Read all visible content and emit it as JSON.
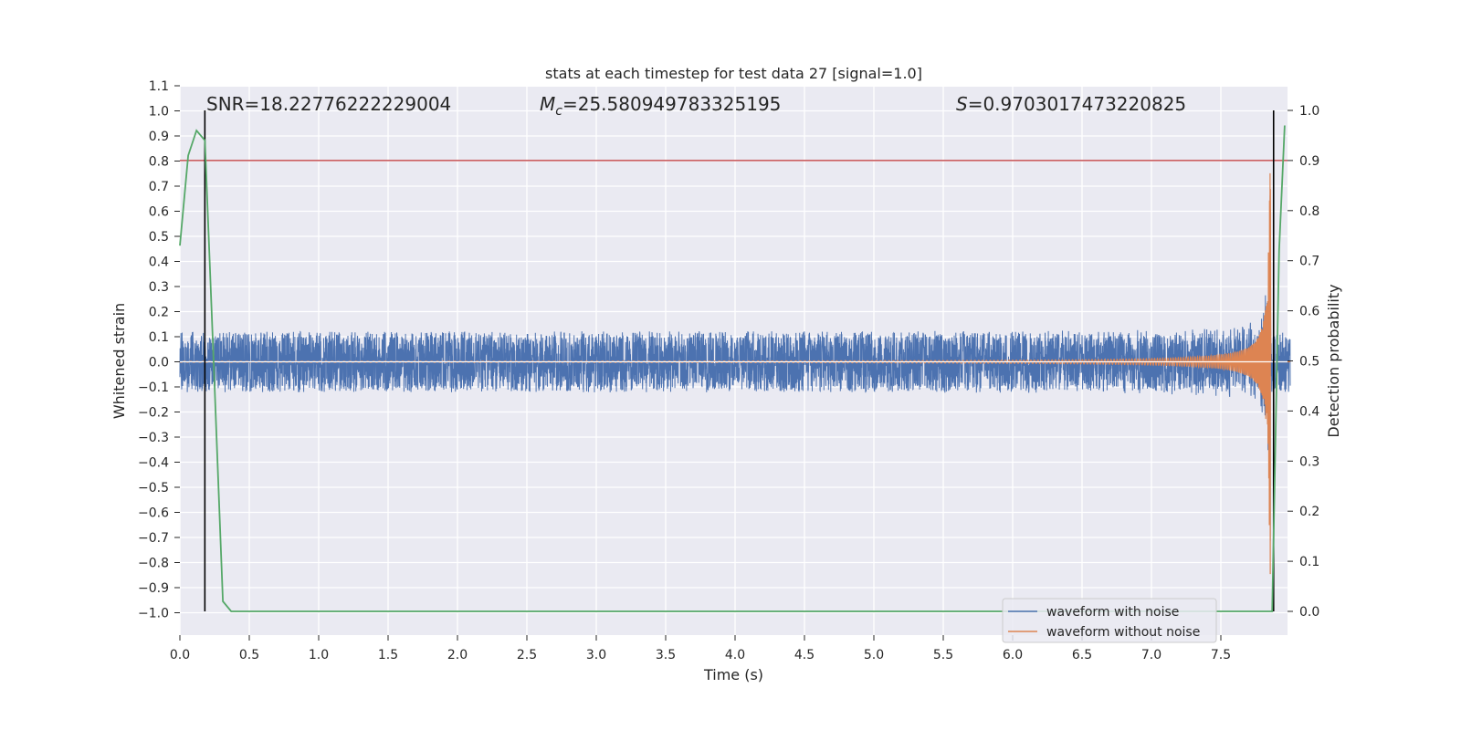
{
  "chart_data": {
    "type": "line",
    "title": "stats at each timestep for test data 27 [signal=1.0]",
    "xlabel": "Time (s)",
    "ylabel": "Whitened strain",
    "y2label": "Detection probability",
    "xlim": [
      0.0,
      8.0
    ],
    "ylim": [
      -1.1,
      1.1
    ],
    "y2lim": [
      -0.045,
      1.045
    ],
    "xticks": [
      "0.0",
      "0.5",
      "1.0",
      "1.5",
      "2.0",
      "2.5",
      "3.0",
      "3.5",
      "4.0",
      "4.5",
      "5.0",
      "5.5",
      "6.0",
      "6.5",
      "7.0",
      "7.5"
    ],
    "yticks": [
      "1.1",
      "1.0",
      "0.9",
      "0.8",
      "0.7",
      "0.6",
      "0.5",
      "0.4",
      "0.3",
      "0.2",
      "0.1",
      "0.0",
      "−0.1",
      "−0.2",
      "−0.3",
      "−0.4",
      "−0.5",
      "−0.6",
      "−0.7",
      "−0.8",
      "−0.9",
      "−1.0"
    ],
    "y2ticks": [
      "1.0",
      "0.9",
      "0.8",
      "0.7",
      "0.6",
      "0.5",
      "0.4",
      "0.3",
      "0.2",
      "0.1",
      "0.0"
    ],
    "grid": true,
    "legend_position": "lower-right",
    "annotations": {
      "snr": "SNR=18.22776222229004",
      "mc_symbol": "M",
      "mc_sub": "c",
      "mc_value": "=25.580949783325195",
      "s_symbol": "S",
      "s_value": "=0.9703017473220825"
    },
    "threshold": {
      "y2": 0.9,
      "color": "#c44e52"
    },
    "vertical_lines": [
      {
        "x": 0.18
      },
      {
        "x": 7.88
      }
    ],
    "series": [
      {
        "name": "waveform with noise",
        "color": "#4c72b0",
        "noise_amplitude": 0.12,
        "peak_amplitude": 0.75
      },
      {
        "name": "waveform without noise",
        "color": "#dd8452",
        "peak_amplitude": 1.0,
        "merger_time": 7.86
      },
      {
        "color": "#55a868",
        "axis": "y2",
        "x": [
          0.0,
          0.06,
          0.12,
          0.18,
          0.25,
          0.31,
          0.37,
          0.43,
          7.85,
          7.87,
          7.92,
          7.96
        ],
        "values": [
          0.73,
          0.91,
          0.96,
          0.94,
          0.45,
          0.02,
          0.0,
          0.0,
          0.0,
          0.0,
          0.72,
          0.97
        ]
      }
    ]
  }
}
